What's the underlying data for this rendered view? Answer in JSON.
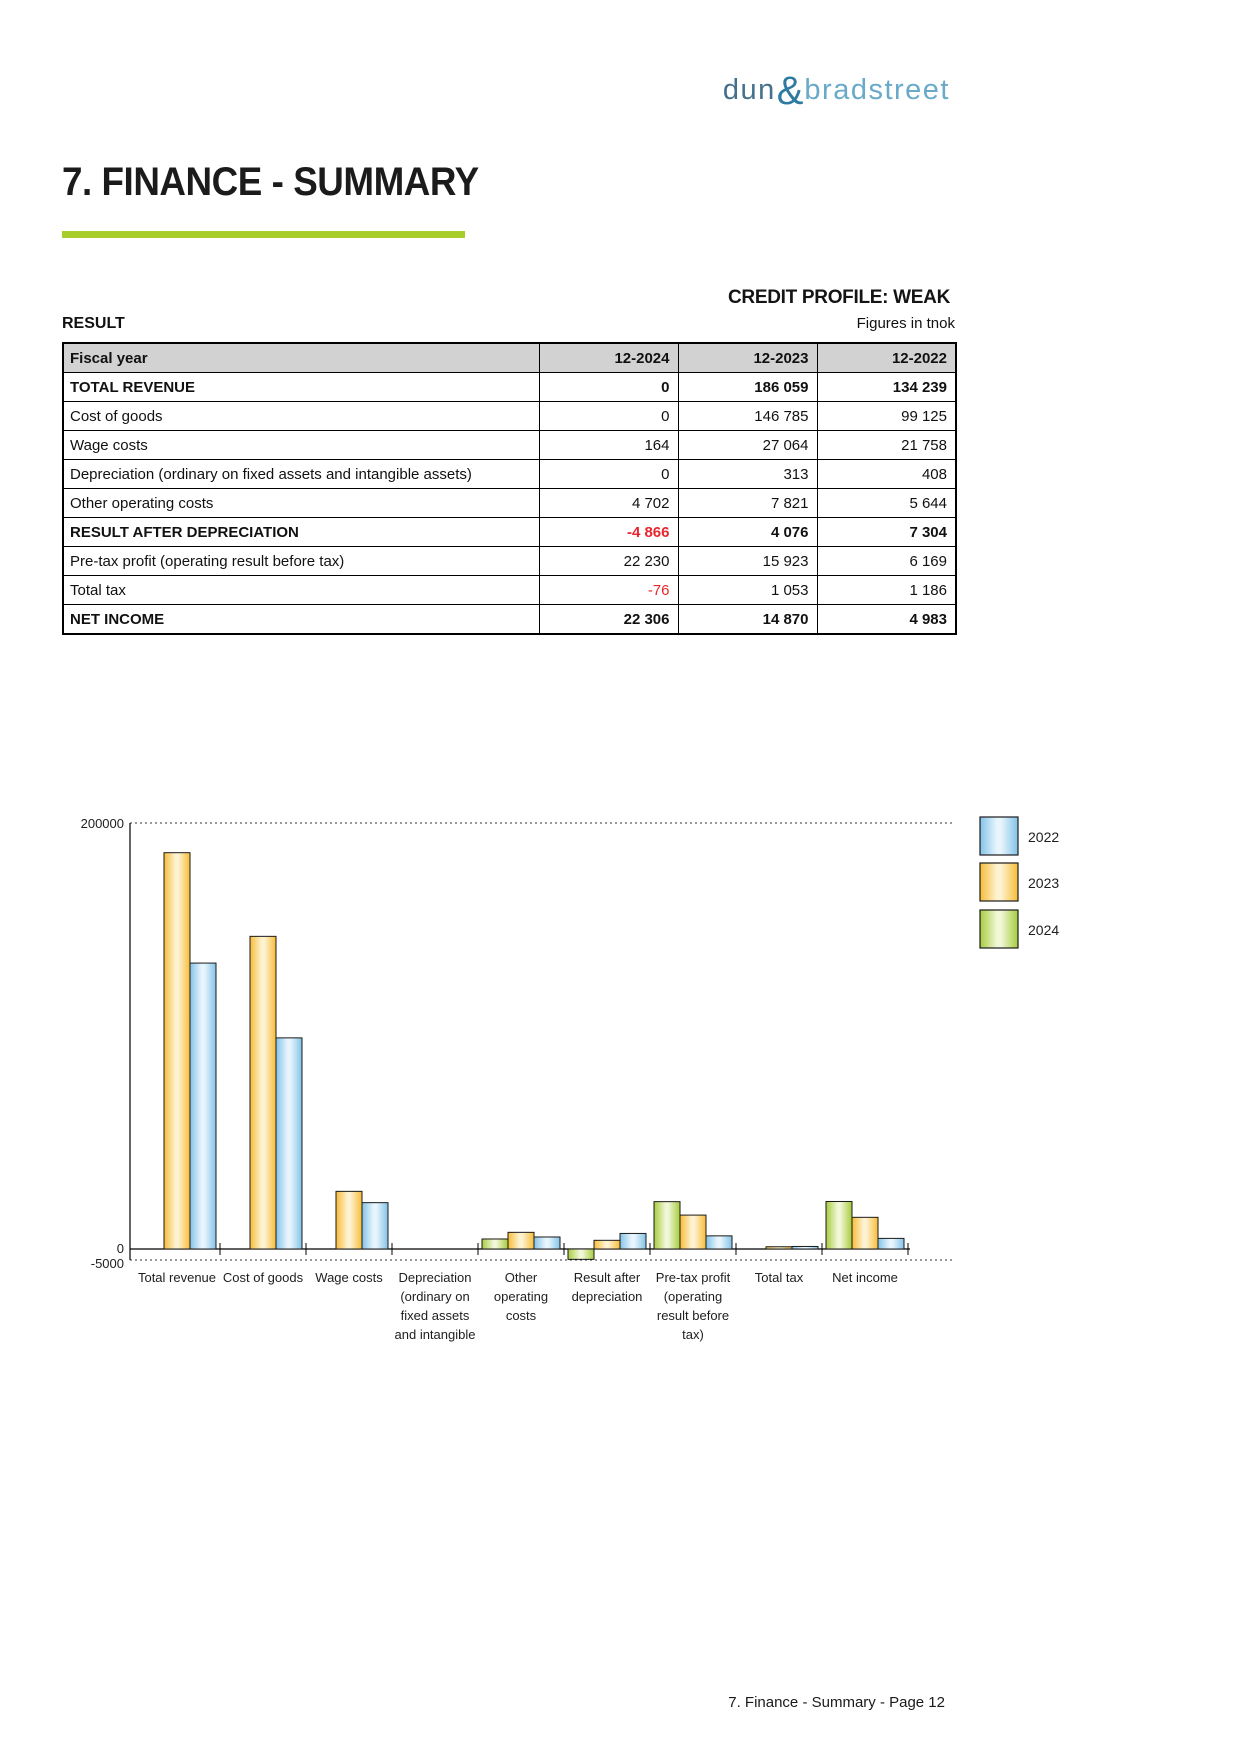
{
  "page": {
    "logo": {
      "dun": "dun",
      "ampersand": "&",
      "bradstreet": "bradstreet"
    },
    "title": "7. FINANCE - SUMMARY",
    "accent_color": "#a8ce2a",
    "credit_profile": "CREDIT PROFILE: WEAK",
    "section_label": "RESULT",
    "figures_note": "Figures in tnok",
    "footer": "7. Finance - Summary - Page 12"
  },
  "table": {
    "header": [
      "Fiscal year",
      "12-2024",
      "12-2023",
      "12-2022"
    ],
    "negative_color": "#e8262d",
    "rows": [
      {
        "label": "TOTAL REVENUE",
        "values": [
          "0",
          "186 059",
          "134 239"
        ],
        "emphasis": true
      },
      {
        "label": "Cost of goods",
        "values": [
          "0",
          "146 785",
          "99 125"
        ],
        "emphasis": false
      },
      {
        "label": "Wage costs",
        "values": [
          "164",
          "27 064",
          "21 758"
        ],
        "emphasis": false
      },
      {
        "label": "Depreciation (ordinary on fixed assets and intangible assets)",
        "values": [
          "0",
          "313",
          "408"
        ],
        "emphasis": false
      },
      {
        "label": "Other operating costs",
        "values": [
          "4 702",
          "7 821",
          "5 644"
        ],
        "emphasis": false
      },
      {
        "label": "RESULT AFTER DEPRECIATION",
        "values": [
          "-4 866",
          "4 076",
          "7 304"
        ],
        "emphasis": true
      },
      {
        "label": "Pre-tax profit (operating result before tax)",
        "values": [
          "22 230",
          "15 923",
          "6 169"
        ],
        "emphasis": false
      },
      {
        "label": "Total tax",
        "values": [
          "-76",
          "1 053",
          "1 186"
        ],
        "emphasis": false
      },
      {
        "label": "NET INCOME",
        "values": [
          "22 306",
          "14 870",
          "4 983"
        ],
        "emphasis": true
      }
    ]
  },
  "chart_data": {
    "type": "bar",
    "title": "",
    "categories": [
      "Total revenue",
      "Cost of goods",
      "Wage costs",
      "Depreciation (ordinary on fixed assets and intangible",
      "Other operating costs",
      "Result after depreciation",
      "Pre-tax profit (operating result before tax)",
      "Total tax",
      "Net income"
    ],
    "category_label_lines": [
      [
        "Total revenue"
      ],
      [
        "Cost of goods"
      ],
      [
        "Wage costs"
      ],
      [
        "Depreciation",
        "(ordinary on",
        "fixed assets",
        "and intangible"
      ],
      [
        "Other",
        "operating",
        "costs"
      ],
      [
        "Result after",
        "depreciation"
      ],
      [
        "Pre-tax profit",
        "(operating",
        "result before",
        "tax)"
      ],
      [
        "Total tax"
      ],
      [
        "Net income"
      ]
    ],
    "series": [
      {
        "name": "2022",
        "values": [
          134239,
          99125,
          21758,
          408,
          5644,
          7304,
          6169,
          1186,
          4983
        ],
        "edge_color": "#82c3e8",
        "center_color": "#e9f5fd"
      },
      {
        "name": "2023",
        "values": [
          186059,
          146785,
          27064,
          313,
          7821,
          4076,
          15923,
          1053,
          14870
        ],
        "edge_color": "#f8bc38",
        "center_color": "#fdf3d2"
      },
      {
        "name": "2024",
        "values": [
          0,
          0,
          164,
          0,
          4702,
          -4866,
          22230,
          -76,
          22306
        ],
        "edge_color": "#a6cc3c",
        "center_color": "#f1f7d8"
      }
    ],
    "bar_order_left_to_right": [
      "2024",
      "2023",
      "2022"
    ],
    "legend_order": [
      "2022",
      "2023",
      "2024"
    ],
    "legend_position": "top-right",
    "ylim": [
      -5000,
      200000
    ],
    "yticks": [
      "200000",
      "0",
      "-5000"
    ],
    "gridlines": "dotted at 200000 and -5000",
    "bar_border_color": "#1a1a1a"
  }
}
